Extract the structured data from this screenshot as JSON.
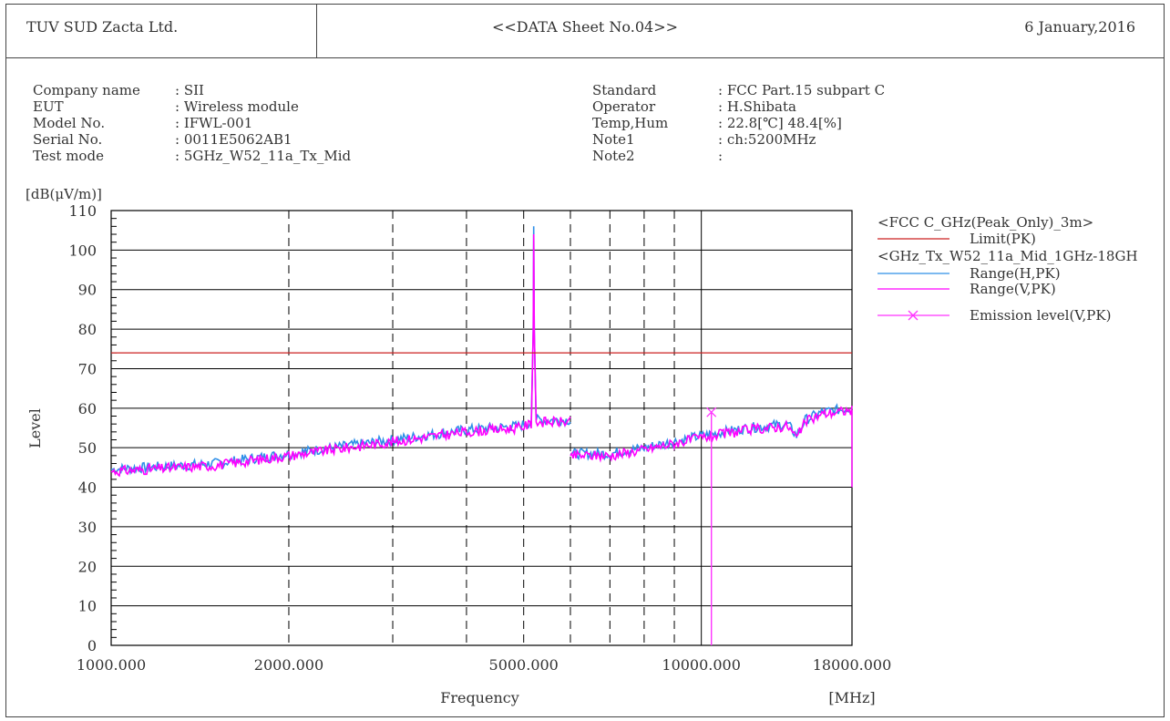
{
  "header": {
    "company": "TUV SUD Zacta Ltd.",
    "title": "<<DATA Sheet No.04>>",
    "date": "6 January,2016"
  },
  "info_left": [
    {
      "key": "Company name",
      "value": ": SII"
    },
    {
      "key": "EUT",
      "value": ": Wireless module"
    },
    {
      "key": "Model No.",
      "value": ": IFWL-001"
    },
    {
      "key": "Serial No.",
      "value": ": 0011E5062AB1"
    },
    {
      "key": "Test mode",
      "value": ": 5GHz_W52_11a_Tx_Mid"
    }
  ],
  "info_right": [
    {
      "key": "Standard",
      "value": ": FCC Part.15 subpart C"
    },
    {
      "key": "Operator",
      "value": ": H.Shibata"
    },
    {
      "key": "Temp,Hum",
      "value": ": 22.8[℃] 48.4[%]"
    },
    {
      "key": "Note1",
      "value": ": ch:5200MHz"
    },
    {
      "key": "Note2",
      "value": ":"
    }
  ],
  "colors": {
    "limit": "#cc2222",
    "range_h": "#2f8fe8",
    "range_v": "#ff00ff",
    "emission": "#ff33ff",
    "grid": "#000000"
  },
  "chart_data": {
    "type": "line",
    "xscale": "log",
    "xlim": [
      1000,
      18000
    ],
    "ylim": [
      0,
      110
    ],
    "ylabel": "Level",
    "ylabel_unit": "[dB(μV/m)]",
    "xlabel": "Frequency",
    "xlabel_unit": "[MHz]",
    "y_ticks": [
      0,
      10,
      20,
      30,
      40,
      50,
      60,
      70,
      80,
      90,
      100,
      110
    ],
    "x_tick_labels": [
      {
        "value": 1000,
        "label": "1000.000"
      },
      {
        "value": 2000,
        "label": "2000.000"
      },
      {
        "value": 5000,
        "label": "5000.000"
      },
      {
        "value": 10000,
        "label": "10000.000"
      },
      {
        "value": 18000,
        "label": "18000.000"
      }
    ],
    "dashed_gridlines_x": [
      2000,
      3000,
      4000,
      5000,
      6000,
      7000,
      8000,
      9000
    ],
    "solid_gridlines_x": [
      10000
    ],
    "legend": {
      "group1": "<FCC C_GHz(Peak_Only)_3m>",
      "group2": "<GHz_Tx_W52_11a_Mid_1GHz-18GH"
    },
    "series": [
      {
        "name": "Limit(PK)",
        "kind": "limit",
        "x": [
          1000,
          18000
        ],
        "y": [
          74,
          74
        ]
      },
      {
        "name": "Range(H,PK)",
        "kind": "range",
        "x": [
          1000,
          1500,
          2000,
          3000,
          4000,
          4900,
          5150,
          5190,
          5200,
          5210,
          5250,
          5500,
          6000,
          6000,
          7000,
          8000,
          10000,
          12000,
          14000,
          14500,
          15000,
          16000,
          18000
        ],
        "y": [
          44.5,
          46,
          48.5,
          52,
          54.5,
          55.5,
          56.5,
          80,
          106,
          80,
          57,
          57,
          57,
          48.5,
          48.5,
          50,
          53,
          55,
          56,
          53,
          57,
          59,
          60
        ]
      },
      {
        "name": "Range(V,PK)",
        "kind": "range",
        "x": [
          1000,
          1500,
          2000,
          3000,
          4000,
          4900,
          5150,
          5190,
          5200,
          5210,
          5250,
          5500,
          6000,
          6000,
          7000,
          8000,
          10000,
          12000,
          14000,
          14500,
          15000,
          16000,
          18000
        ],
        "y": [
          44,
          45.5,
          48,
          51.5,
          54,
          55,
          56,
          80,
          104,
          80,
          56.5,
          56.5,
          56.5,
          48,
          48,
          49.5,
          52.5,
          54.5,
          55.5,
          52.5,
          56.5,
          58.5,
          59.5
        ]
      },
      {
        "name": "Emission level(V,PK)",
        "kind": "marker",
        "x": [
          10400
        ],
        "y": [
          59
        ]
      }
    ]
  }
}
